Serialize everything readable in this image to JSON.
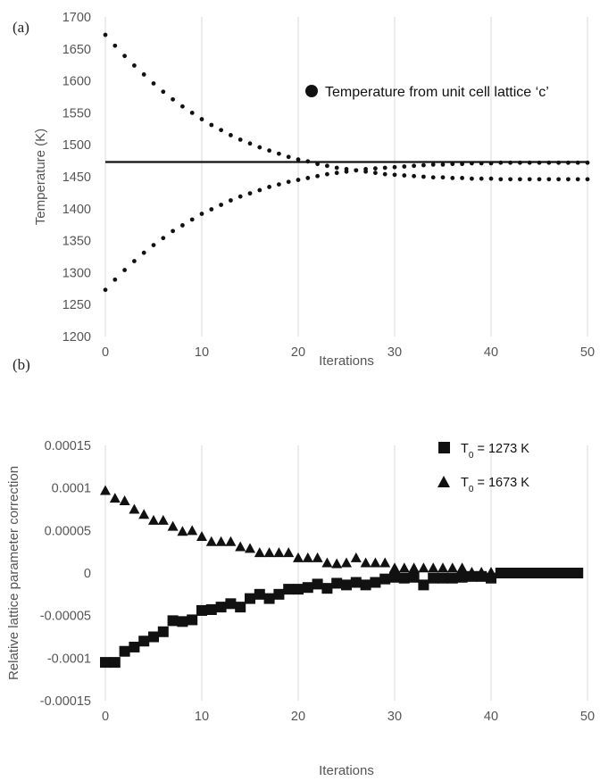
{
  "chart_data": [
    {
      "panel_label": "(a)",
      "type": "scatter",
      "xlabel": "Iterations",
      "ylabel": "Temperature (K)",
      "xlim": [
        0,
        50
      ],
      "ylim": [
        1200,
        1700
      ],
      "xticks": [
        "0",
        "10",
        "20",
        "30",
        "40",
        "50"
      ],
      "yticks": [
        "1200",
        "1250",
        "1300",
        "1350",
        "1400",
        "1450",
        "1500",
        "1550",
        "1600",
        "1650",
        "1700"
      ],
      "grid": "vertical",
      "legend_position": "right",
      "series": [
        {
          "name": "Temperature from unit cell lattice ‘c’",
          "marker": "circle",
          "x": [
            0,
            1,
            2,
            3,
            4,
            5,
            6,
            7,
            8,
            9,
            10,
            11,
            12,
            13,
            14,
            15,
            16,
            17,
            18,
            19,
            20,
            21,
            22,
            23,
            24,
            25,
            26,
            27,
            28,
            29,
            30,
            31,
            32,
            33,
            34,
            35,
            36,
            37,
            38,
            39,
            40,
            41,
            42,
            43,
            44,
            45,
            46,
            47,
            48,
            49,
            50
          ],
          "y": [
            1672,
            1655,
            1639,
            1624,
            1610,
            1596,
            1583,
            1571,
            1560,
            1550,
            1540,
            1531,
            1523,
            1515,
            1508,
            1502,
            1496,
            1491,
            1486,
            1481,
            1477,
            1474,
            1470,
            1467,
            1464,
            1462,
            1460,
            1458,
            1456,
            1454,
            1453,
            1452,
            1451,
            1450,
            1449,
            1449,
            1448,
            1448,
            1447,
            1447,
            1447,
            1446,
            1446,
            1446,
            1446,
            1446,
            1446,
            1446,
            1446,
            1446,
            1446
          ]
        },
        {
          "name": "",
          "marker": "circle",
          "x": [
            0,
            1,
            2,
            3,
            4,
            5,
            6,
            7,
            8,
            9,
            10,
            11,
            12,
            13,
            14,
            15,
            16,
            17,
            18,
            19,
            20,
            21,
            22,
            23,
            24,
            25,
            26,
            27,
            28,
            29,
            30,
            31,
            32,
            33,
            34,
            35,
            36,
            37,
            38,
            39,
            40,
            41,
            42,
            43,
            44,
            45,
            46,
            47,
            48,
            49,
            50
          ],
          "y": [
            1273,
            1289,
            1304,
            1318,
            1331,
            1343,
            1354,
            1365,
            1374,
            1383,
            1392,
            1399,
            1406,
            1413,
            1419,
            1424,
            1429,
            1434,
            1438,
            1442,
            1445,
            1448,
            1451,
            1454,
            1456,
            1458,
            1460,
            1462,
            1463,
            1464,
            1465,
            1466,
            1467,
            1468,
            1469,
            1469,
            1470,
            1470,
            1471,
            1471,
            1471,
            1472,
            1472,
            1472,
            1472,
            1472,
            1472,
            1472,
            1472,
            1472,
            1472
          ]
        },
        {
          "name": "",
          "type": "line",
          "x": [
            0,
            50
          ],
          "y": [
            1473,
            1473
          ]
        }
      ]
    },
    {
      "panel_label": "(b)",
      "type": "scatter",
      "xlabel": "Iterations",
      "ylabel": "Relative lattice parameter correction",
      "xlim": [
        0,
        50
      ],
      "ylim": [
        -0.00015,
        0.00015
      ],
      "xticks": [
        "0",
        "10",
        "20",
        "30",
        "40",
        "50"
      ],
      "yticks": [
        "-0.00015",
        "-0.0001",
        "-0.00005",
        "0",
        "0.00005",
        "0.0001",
        "0.00015"
      ],
      "grid": "vertical",
      "legend_position": "top-right",
      "series": [
        {
          "name_main": "T",
          "name_sub": "0",
          "name_rest": " = 1273 K",
          "marker": "square",
          "x": [
            0,
            1,
            2,
            3,
            4,
            5,
            6,
            7,
            8,
            9,
            10,
            11,
            12,
            13,
            14,
            15,
            16,
            17,
            18,
            19,
            20,
            21,
            22,
            23,
            24,
            25,
            26,
            27,
            28,
            29,
            30,
            31,
            32,
            33,
            34,
            35,
            36,
            37,
            38,
            39,
            40,
            41,
            42,
            43,
            44,
            45,
            46,
            47,
            48,
            49
          ],
          "y": [
            -0.000105,
            -0.000105,
            -9.2e-05,
            -8.7e-05,
            -8e-05,
            -7.5e-05,
            -6.9e-05,
            -5.6e-05,
            -5.7e-05,
            -5.5e-05,
            -4.4e-05,
            -4.3e-05,
            -4e-05,
            -3.6e-05,
            -4e-05,
            -3e-05,
            -2.5e-05,
            -3e-05,
            -2.5e-05,
            -1.9e-05,
            -1.9e-05,
            -1.7e-05,
            -1.3e-05,
            -1.8e-05,
            -1.2e-05,
            -1.4e-05,
            -1.1e-05,
            -1.4e-05,
            -1.1e-05,
            -7e-06,
            -5e-06,
            -6e-06,
            -5e-06,
            -1.4e-05,
            -6e-06,
            -6e-06,
            -6e-06,
            -5e-06,
            -4e-06,
            -4e-06,
            -6e-06,
            0,
            0,
            0,
            0,
            0,
            0,
            0,
            0,
            0
          ]
        },
        {
          "name_main": "T",
          "name_sub": "0",
          "name_rest": " = 1673 K",
          "marker": "triangle",
          "x": [
            0,
            1,
            2,
            3,
            4,
            5,
            6,
            7,
            8,
            9,
            10,
            11,
            12,
            13,
            14,
            15,
            16,
            17,
            18,
            19,
            20,
            21,
            22,
            23,
            24,
            25,
            26,
            27,
            28,
            29,
            30,
            31,
            32,
            33,
            34,
            35,
            36,
            37,
            38,
            39,
            40
          ],
          "y": [
            9.7e-05,
            8.8e-05,
            8.5e-05,
            7.5e-05,
            6.9e-05,
            6.2e-05,
            6.2e-05,
            5.5e-05,
            4.9e-05,
            5e-05,
            4.3e-05,
            3.7e-05,
            3.7e-05,
            3.7e-05,
            3.1e-05,
            2.9e-05,
            2.4e-05,
            2.4e-05,
            2.4e-05,
            2.4e-05,
            1.8e-05,
            1.8e-05,
            1.8e-05,
            1.2e-05,
            1.1e-05,
            1.2e-05,
            1.8e-05,
            1.2e-05,
            1.2e-05,
            1.2e-05,
            6e-06,
            6e-06,
            6e-06,
            6e-06,
            6e-06,
            6e-06,
            6e-06,
            6e-06,
            1e-06,
            1e-06,
            1e-06
          ]
        }
      ]
    }
  ]
}
